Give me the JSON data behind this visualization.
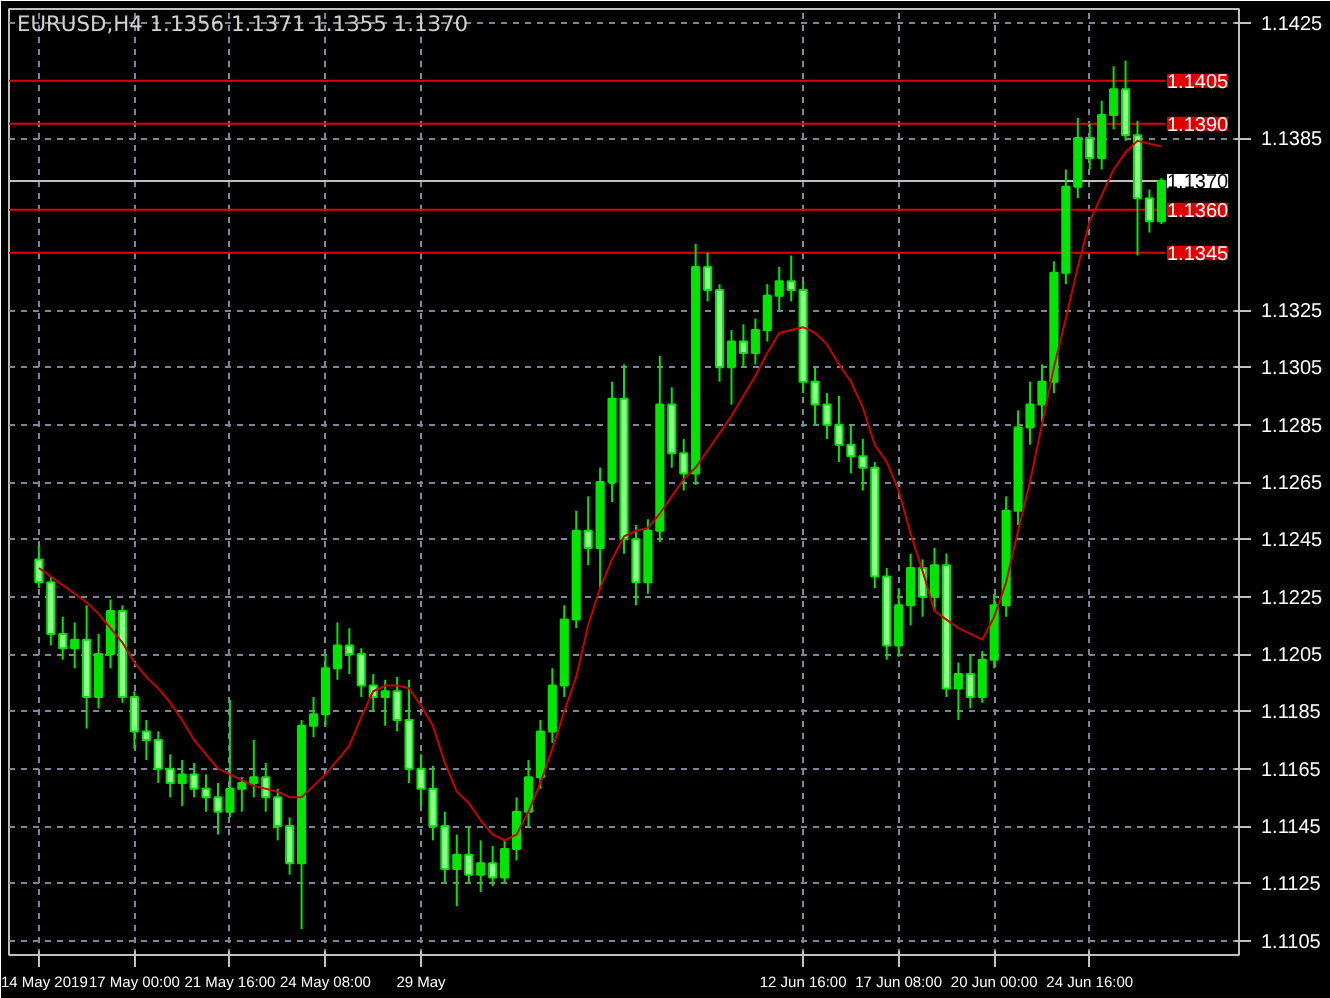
{
  "chart_data": {
    "type": "candlestick",
    "title": "EURUSD,H4  1.1356 1.1371 1.1355 1.1370",
    "categories": [
      "14 May 2019",
      null,
      null,
      null,
      null,
      null,
      null,
      null,
      "17 May 00:00",
      null,
      null,
      null,
      null,
      null,
      null,
      null,
      "21 May 16:00",
      null,
      null,
      null,
      null,
      null,
      null,
      null,
      "24 May 08:00",
      null,
      null,
      null,
      null,
      null,
      null,
      null,
      "29 May",
      null,
      null,
      null,
      null,
      null,
      null,
      null,
      null,
      null,
      null,
      null,
      null,
      null,
      null,
      null,
      null,
      null,
      null,
      null,
      null,
      null,
      null,
      null,
      null,
      null,
      null,
      null,
      null,
      null,
      null,
      null,
      "12 Jun 16:00",
      null,
      null,
      null,
      null,
      null,
      null,
      null,
      "17 Jun 08:00",
      null,
      null,
      null,
      null,
      null,
      null,
      null,
      "20 Jun 00:00",
      null,
      null,
      null,
      null,
      null,
      null,
      null,
      "24 Jun 16:00",
      null,
      null,
      null,
      null,
      null,
      null
    ],
    "series": [
      {
        "type": "candlestick",
        "color": "#00e600",
        "ohlc": [
          [
            1.1238,
            1.1243,
            1.1228,
            1.123
          ],
          [
            1.123,
            1.1232,
            1.1208,
            1.1212
          ],
          [
            1.1212,
            1.1218,
            1.1203,
            1.1207
          ],
          [
            1.1207,
            1.1216,
            1.12,
            1.121
          ],
          [
            1.121,
            1.1222,
            1.1179,
            1.119
          ],
          [
            1.119,
            1.1212,
            1.1186,
            1.1205
          ],
          [
            1.1205,
            1.1224,
            1.12,
            1.122
          ],
          [
            1.122,
            1.1222,
            1.1188,
            1.119
          ],
          [
            1.119,
            1.1192,
            1.1172,
            1.1178
          ],
          [
            1.1178,
            1.1182,
            1.1168,
            1.1175
          ],
          [
            1.1175,
            1.1178,
            1.116,
            1.1165
          ],
          [
            1.1165,
            1.117,
            1.1155,
            1.116
          ],
          [
            1.116,
            1.1168,
            1.1152,
            1.1163
          ],
          [
            1.1163,
            1.1167,
            1.1155,
            1.1158
          ],
          [
            1.1158,
            1.1163,
            1.115,
            1.1155
          ],
          [
            1.1155,
            1.116,
            1.1142,
            1.115
          ],
          [
            1.115,
            1.1189,
            1.1148,
            1.1158
          ],
          [
            1.1158,
            1.1162,
            1.115,
            1.116
          ],
          [
            1.116,
            1.1175,
            1.1155,
            1.1162
          ],
          [
            1.1162,
            1.1167,
            1.115,
            1.1155
          ],
          [
            1.1155,
            1.1158,
            1.114,
            1.1145
          ],
          [
            1.1145,
            1.1148,
            1.1128,
            1.1132
          ],
          [
            1.1132,
            1.1182,
            1.1109,
            1.118
          ],
          [
            1.118,
            1.119,
            1.1176,
            1.1184
          ],
          [
            1.1184,
            1.1205,
            1.118,
            1.12
          ],
          [
            1.12,
            1.1216,
            1.1196,
            1.1208
          ],
          [
            1.1208,
            1.1214,
            1.1198,
            1.1205
          ],
          [
            1.1205,
            1.1207,
            1.119,
            1.1194
          ],
          [
            1.1194,
            1.1198,
            1.1185,
            1.119
          ],
          [
            1.119,
            1.1196,
            1.118,
            1.1192
          ],
          [
            1.1192,
            1.1197,
            1.1178,
            1.1182
          ],
          [
            1.1182,
            1.1196,
            1.116,
            1.1165
          ],
          [
            1.1165,
            1.117,
            1.1152,
            1.1158
          ],
          [
            1.1158,
            1.1166,
            1.114,
            1.1145
          ],
          [
            1.1145,
            1.115,
            1.1125,
            1.113
          ],
          [
            1.113,
            1.1142,
            1.1117,
            1.1135
          ],
          [
            1.1135,
            1.1145,
            1.1125,
            1.1128
          ],
          [
            1.1128,
            1.114,
            1.1122,
            1.1132
          ],
          [
            1.1132,
            1.1138,
            1.1124,
            1.1127
          ],
          [
            1.1127,
            1.114,
            1.1125,
            1.1137
          ],
          [
            1.1137,
            1.1155,
            1.1133,
            1.115
          ],
          [
            1.115,
            1.1168,
            1.1145,
            1.1162
          ],
          [
            1.1162,
            1.1182,
            1.1158,
            1.1178
          ],
          [
            1.1178,
            1.12,
            1.1174,
            1.1194
          ],
          [
            1.1194,
            1.1222,
            1.119,
            1.1217
          ],
          [
            1.1217,
            1.1255,
            1.1214,
            1.1248
          ],
          [
            1.1248,
            1.126,
            1.1236,
            1.1242
          ],
          [
            1.1242,
            1.127,
            1.1228,
            1.1265
          ],
          [
            1.1265,
            1.13,
            1.1258,
            1.1294
          ],
          [
            1.1294,
            1.1306,
            1.124,
            1.1245
          ],
          [
            1.1245,
            1.125,
            1.1222,
            1.123
          ],
          [
            1.123,
            1.1252,
            1.1226,
            1.1248
          ],
          [
            1.1248,
            1.1309,
            1.1244,
            1.1292
          ],
          [
            1.1292,
            1.1298,
            1.127,
            1.1275
          ],
          [
            1.1275,
            1.128,
            1.1262,
            1.1268
          ],
          [
            1.1268,
            1.1348,
            1.1264,
            1.134
          ],
          [
            1.134,
            1.1345,
            1.1328,
            1.1332
          ],
          [
            1.1332,
            1.1334,
            1.13,
            1.1305
          ],
          [
            1.1305,
            1.1318,
            1.1292,
            1.1314
          ],
          [
            1.1314,
            1.132,
            1.1305,
            1.131
          ],
          [
            1.131,
            1.1322,
            1.1306,
            1.1318
          ],
          [
            1.1318,
            1.1334,
            1.1314,
            1.133
          ],
          [
            1.133,
            1.134,
            1.1325,
            1.1335
          ],
          [
            1.1335,
            1.1344,
            1.1328,
            1.1332
          ],
          [
            1.1332,
            1.1335,
            1.1296,
            1.13
          ],
          [
            1.13,
            1.1305,
            1.1285,
            1.1292
          ],
          [
            1.1292,
            1.1296,
            1.128,
            1.1285
          ],
          [
            1.1285,
            1.1295,
            1.1272,
            1.1278
          ],
          [
            1.1278,
            1.1285,
            1.1268,
            1.1274
          ],
          [
            1.1274,
            1.128,
            1.1262,
            1.127
          ],
          [
            1.127,
            1.1272,
            1.1228,
            1.1232
          ],
          [
            1.1232,
            1.1235,
            1.1203,
            1.1208
          ],
          [
            1.1208,
            1.1228,
            1.1204,
            1.1222
          ],
          [
            1.1222,
            1.124,
            1.1215,
            1.1235
          ],
          [
            1.1235,
            1.1238,
            1.1218,
            1.1225
          ],
          [
            1.1225,
            1.1242,
            1.122,
            1.1236
          ],
          [
            1.1236,
            1.124,
            1.119,
            1.1193
          ],
          [
            1.1193,
            1.1202,
            1.1182,
            1.1198
          ],
          [
            1.1198,
            1.1205,
            1.1186,
            1.119
          ],
          [
            1.119,
            1.1206,
            1.1188,
            1.1203
          ],
          [
            1.1203,
            1.1226,
            1.12,
            1.1222
          ],
          [
            1.1222,
            1.126,
            1.1218,
            1.1255
          ],
          [
            1.1255,
            1.129,
            1.125,
            1.1284
          ],
          [
            1.1284,
            1.13,
            1.1278,
            1.1292
          ],
          [
            1.1292,
            1.1306,
            1.1286,
            1.13
          ],
          [
            1.13,
            1.1342,
            1.1296,
            1.1338
          ],
          [
            1.1338,
            1.1374,
            1.1334,
            1.1368
          ],
          [
            1.1368,
            1.1392,
            1.1364,
            1.1385
          ],
          [
            1.1385,
            1.139,
            1.1374,
            1.1378
          ],
          [
            1.1378,
            1.1398,
            1.1374,
            1.1393
          ],
          [
            1.1393,
            1.141,
            1.1388,
            1.1402
          ],
          [
            1.1402,
            1.1412,
            1.1384,
            1.1386
          ],
          [
            1.1386,
            1.1391,
            1.1344,
            1.1364
          ],
          [
            1.1364,
            1.1367,
            1.1352,
            1.1356
          ],
          [
            1.1356,
            1.1371,
            1.1355,
            1.137
          ]
        ]
      },
      {
        "type": "line",
        "color": "#cc0000",
        "values": [
          1.1235,
          1.1232,
          1.1229,
          1.1226,
          1.1223,
          1.1219,
          1.1214,
          1.1209,
          1.1202,
          1.1197,
          1.1193,
          1.1188,
          1.1182,
          1.1175,
          1.117,
          1.1165,
          1.1163,
          1.1161,
          1.1159,
          1.1158,
          1.1157,
          1.1155,
          1.1155,
          1.1159,
          1.1163,
          1.1168,
          1.1173,
          1.1183,
          1.1192,
          1.1194,
          1.1194,
          1.1193,
          1.1187,
          1.118,
          1.1167,
          1.1157,
          1.1153,
          1.1147,
          1.1142,
          1.114,
          1.1142,
          1.115,
          1.116,
          1.1172,
          1.1185,
          1.1197,
          1.1215,
          1.1228,
          1.1238,
          1.1246,
          1.1248,
          1.1249,
          1.1254,
          1.126,
          1.1266,
          1.127,
          1.1276,
          1.1282,
          1.1288,
          1.1295,
          1.1302,
          1.131,
          1.1317,
          1.1318,
          1.1319,
          1.1317,
          1.1313,
          1.1306,
          1.13,
          1.1291,
          1.1278,
          1.1272,
          1.1262,
          1.1247,
          1.1234,
          1.122,
          1.1217,
          1.1214,
          1.1212,
          1.121,
          1.1218,
          1.123,
          1.1248,
          1.1265,
          1.1285,
          1.1305,
          1.1322,
          1.134,
          1.1356,
          1.1365,
          1.1374,
          1.138,
          1.1384,
          1.1383,
          1.1382
        ]
      }
    ],
    "ylim": [
      1.11,
      1.143
    ],
    "yticks": [
      1.1105,
      1.1125,
      1.1145,
      1.1165,
      1.1185,
      1.1205,
      1.1225,
      1.1245,
      1.1265,
      1.1285,
      1.1305,
      1.1325,
      1.1385,
      1.1425
    ],
    "grid": true,
    "ref_lines": [
      {
        "axis": "y",
        "value": 1.1405,
        "label": "1.1405",
        "color": "#e00000"
      },
      {
        "axis": "y",
        "value": 1.139,
        "label": "1.1390",
        "color": "#e00000"
      },
      {
        "axis": "y",
        "value": 1.137,
        "label": "1.1370",
        "color": "#c0c0c0"
      },
      {
        "axis": "y",
        "value": 1.136,
        "label": "1.1360",
        "color": "#e00000"
      },
      {
        "axis": "y",
        "value": 1.1345,
        "label": "1.1345",
        "color": "#e00000"
      }
    ]
  }
}
